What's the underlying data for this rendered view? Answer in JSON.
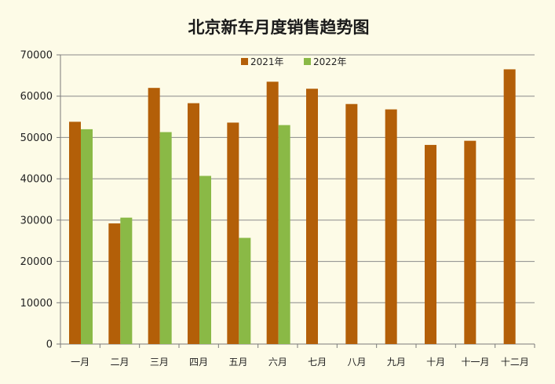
{
  "chart_data": {
    "type": "bar",
    "title": "北京新车月度销售趋势图",
    "xlabel": "",
    "ylabel": "",
    "ylim": [
      0,
      70000
    ],
    "yticks": [
      0,
      10000,
      20000,
      30000,
      40000,
      50000,
      60000,
      70000
    ],
    "categories": [
      "一月",
      "二月",
      "三月",
      "四月",
      "五月",
      "六月",
      "七月",
      "八月",
      "九月",
      "十月",
      "十一月",
      "十二月"
    ],
    "series": [
      {
        "name": "2021年",
        "color": "#b35f08",
        "values": [
          53800,
          29200,
          62000,
          58300,
          53600,
          63500,
          61800,
          58100,
          56800,
          48200,
          49200,
          66500
        ]
      },
      {
        "name": "2022年",
        "color": "#8ab946",
        "values": [
          52000,
          30600,
          51300,
          40700,
          25700,
          53000,
          null,
          null,
          null,
          null,
          null,
          null
        ]
      }
    ],
    "legend_position": "top-center",
    "grid": true
  }
}
